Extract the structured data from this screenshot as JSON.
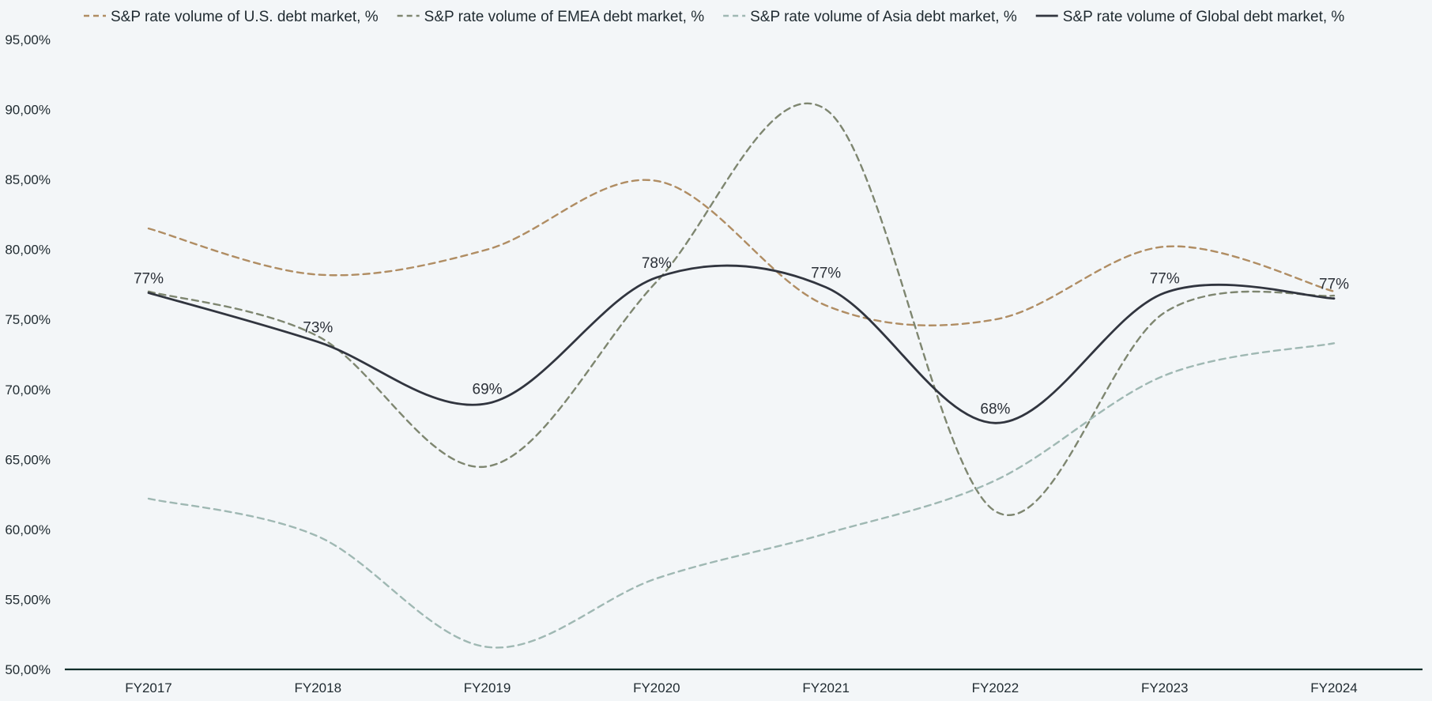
{
  "chart_data": {
    "type": "line",
    "title": "",
    "xlabel": "",
    "ylabel": "",
    "categories": [
      "FY2017",
      "FY2018",
      "FY2019",
      "FY2020",
      "FY2021",
      "FY2022",
      "FY2023",
      "FY2024"
    ],
    "ylim": [
      50,
      95
    ],
    "ytick_step": 5,
    "ytick_labels": [
      "50,00%",
      "55,00%",
      "60,00%",
      "65,00%",
      "70,00%",
      "75,00%",
      "80,00%",
      "85,00%",
      "90,00%",
      "95,00%"
    ],
    "grid": false,
    "legend_position": "top",
    "series": [
      {
        "name": "S&P rate volume of U.S. debt market, %",
        "values": [
          81.5,
          78.2,
          80.0,
          84.9,
          76.0,
          75.0,
          80.2,
          77.0
        ],
        "color": "#b08d63",
        "dash": "dashed",
        "data_labels": []
      },
      {
        "name": "S&P rate volume of EMEA debt market, %",
        "values": [
          77.0,
          73.8,
          64.5,
          77.7,
          90.0,
          61.3,
          75.5,
          76.7
        ],
        "color": "#7e8670",
        "dash": "dashed",
        "data_labels": []
      },
      {
        "name": "S&P rate volume of Asia debt market, %",
        "values": [
          62.2,
          59.5,
          51.6,
          56.5,
          59.7,
          63.5,
          71.0,
          73.3
        ],
        "color": "#9fb8b3",
        "dash": "dashed",
        "data_labels": []
      },
      {
        "name": "S&P rate volume of Global debt market, %",
        "values": [
          76.9,
          73.4,
          69.0,
          78.0,
          77.3,
          67.6,
          76.9,
          76.5
        ],
        "color": "#31353f",
        "dash": "solid",
        "data_labels": [
          "77%",
          "73%",
          "69%",
          "78%",
          "77%",
          "68%",
          "77%",
          "77%"
        ]
      }
    ]
  }
}
